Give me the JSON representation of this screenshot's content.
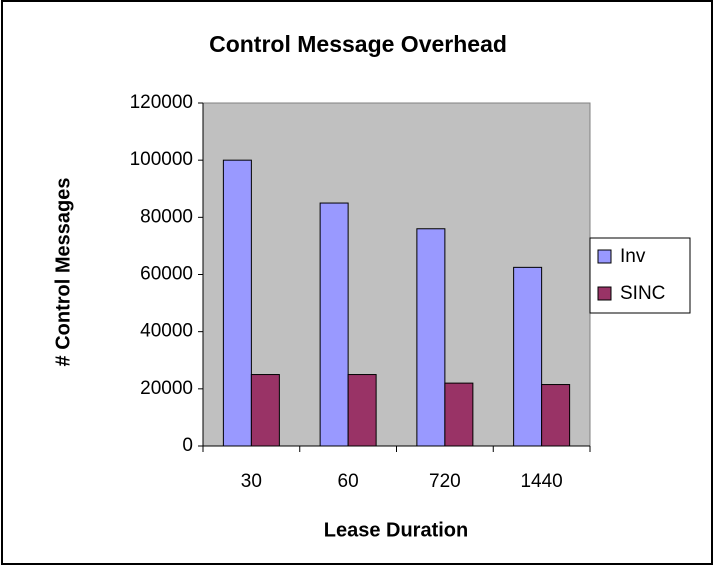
{
  "chart_data": {
    "type": "bar",
    "title": "Control Message Overhead",
    "x_label": "Lease Duration",
    "y_label": "# Control Messages",
    "categories": [
      "30",
      "60",
      "720",
      "1440"
    ],
    "series": [
      {
        "name": "Inv",
        "color": "#9999ff",
        "values": [
          100000,
          85000,
          76000,
          62500
        ]
      },
      {
        "name": "SINC",
        "color": "#993366",
        "values": [
          25000,
          25000,
          22000,
          21500
        ]
      }
    ],
    "ylim": [
      0,
      120000
    ],
    "yticks": [
      0,
      20000,
      40000,
      60000,
      80000,
      100000,
      120000
    ],
    "grid": false,
    "legend": "right",
    "plot_background": "#c0c0c0"
  }
}
